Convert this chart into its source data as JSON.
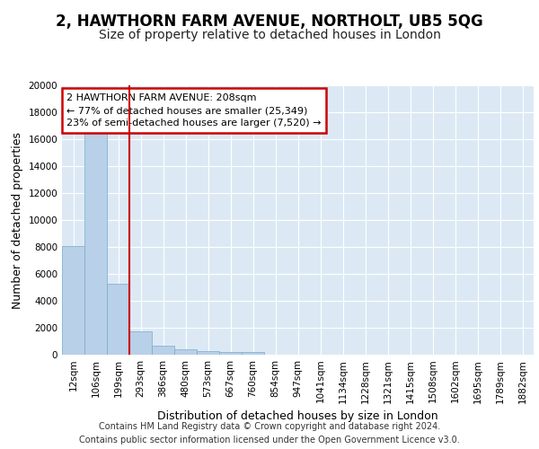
{
  "title": "2, HAWTHORN FARM AVENUE, NORTHOLT, UB5 5QG",
  "subtitle": "Size of property relative to detached houses in London",
  "xlabel": "Distribution of detached houses by size in London",
  "ylabel": "Number of detached properties",
  "footer_line1": "Contains HM Land Registry data © Crown copyright and database right 2024.",
  "footer_line2": "Contains public sector information licensed under the Open Government Licence v3.0.",
  "categories": [
    "12sqm",
    "106sqm",
    "199sqm",
    "293sqm",
    "386sqm",
    "480sqm",
    "573sqm",
    "667sqm",
    "760sqm",
    "854sqm",
    "947sqm",
    "1041sqm",
    "1134sqm",
    "1228sqm",
    "1321sqm",
    "1415sqm",
    "1508sqm",
    "1602sqm",
    "1695sqm",
    "1789sqm",
    "1882sqm"
  ],
  "values": [
    8100,
    16700,
    5300,
    1750,
    700,
    380,
    280,
    220,
    200,
    0,
    0,
    0,
    0,
    0,
    0,
    0,
    0,
    0,
    0,
    0,
    0
  ],
  "bar_color": "#b8d0e8",
  "bar_edge_color": "#7aaac8",
  "property_line_color": "#cc0000",
  "annotation_text": "2 HAWTHORN FARM AVENUE: 208sqm\n← 77% of detached houses are smaller (25,349)\n23% of semi-detached houses are larger (7,520) →",
  "annotation_box_color": "#cc0000",
  "ylim": [
    0,
    20000
  ],
  "yticks": [
    0,
    2000,
    4000,
    6000,
    8000,
    10000,
    12000,
    14000,
    16000,
    18000,
    20000
  ],
  "background_color": "#dce9f5",
  "grid_color": "#ffffff",
  "title_fontsize": 12,
  "subtitle_fontsize": 10,
  "axis_fontsize": 9,
  "tick_fontsize": 7.5,
  "footer_fontsize": 7
}
